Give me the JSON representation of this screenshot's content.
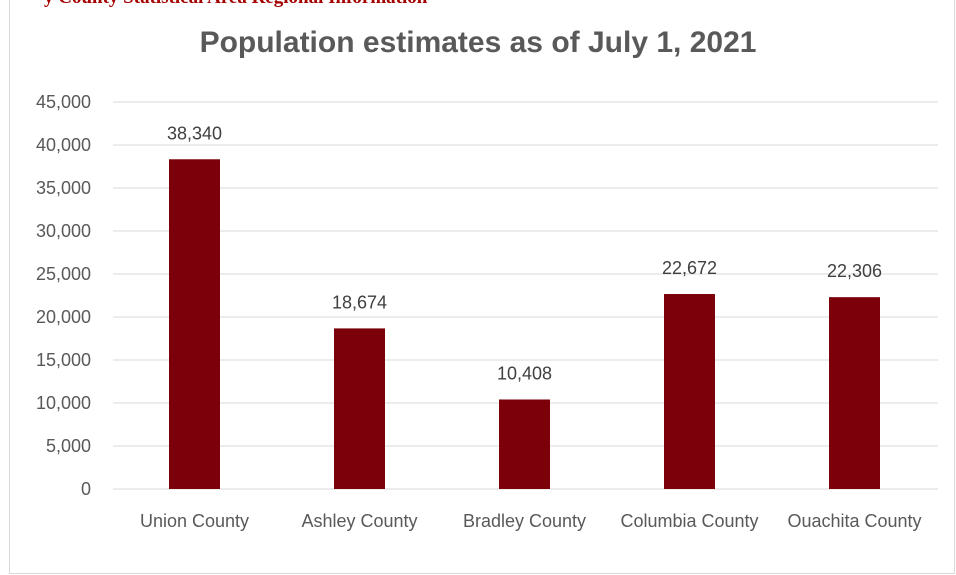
{
  "caption_fragment": "y County Statistical Area Regional Information",
  "chart_data": {
    "type": "bar",
    "title": "Population estimates as of July 1, 2021",
    "categories": [
      "Union County",
      "Ashley County",
      "Bradley County",
      "Columbia County",
      "Ouachita County"
    ],
    "values": [
      38340,
      18674,
      10408,
      22672,
      22306
    ],
    "value_labels": [
      "38,340",
      "18,674",
      "10,408",
      "22,672",
      "22,306"
    ],
    "ylim": [
      0,
      45000
    ],
    "y_ticks": [
      0,
      5000,
      10000,
      15000,
      20000,
      25000,
      30000,
      35000,
      40000,
      45000
    ],
    "y_tick_labels": [
      "0",
      "5,000",
      "10,000",
      "15,000",
      "20,000",
      "25,000",
      "30,000",
      "35,000",
      "40,000",
      "45,000"
    ],
    "grid": true,
    "legend": "none",
    "bar_color": "#7b0009",
    "grid_color": "#d9d9d9"
  }
}
